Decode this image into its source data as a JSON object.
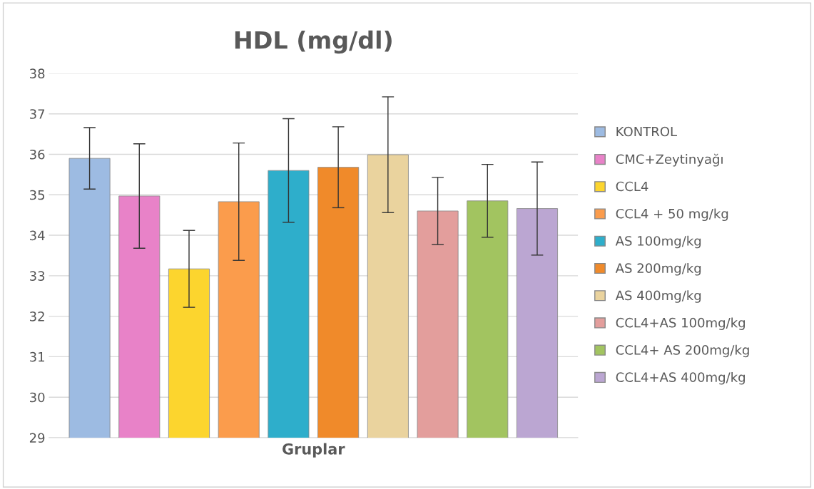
{
  "chart_data": {
    "type": "bar",
    "title": "HDL (mg/dl)",
    "xlabel": "Gruplar",
    "categories": [
      null
    ],
    "series": [
      {
        "name": "KONTROL",
        "color": "#9dbbe2",
        "values": [
          35.9
        ],
        "errors": [
          0.76
        ]
      },
      {
        "name": "CMC+Zeytinyağı",
        "color": "#e882c8",
        "values": [
          34.97
        ],
        "errors": [
          1.29
        ]
      },
      {
        "name": "CCL4",
        "color": "#fcd52e",
        "values": [
          33.17
        ],
        "errors": [
          0.95
        ]
      },
      {
        "name": "CCL4 + 50 mg/kg",
        "color": "#fb9c4c",
        "values": [
          34.83
        ],
        "errors": [
          1.45
        ]
      },
      {
        "name": "AS 100mg/kg",
        "color": "#2eaecb",
        "values": [
          35.6
        ],
        "errors": [
          1.28
        ]
      },
      {
        "name": "AS 200mg/kg",
        "color": "#f08a2a",
        "values": [
          35.68
        ],
        "errors": [
          1.0
        ]
      },
      {
        "name": "AS 400mg/kg",
        "color": "#ead39e",
        "values": [
          35.99
        ],
        "errors": [
          1.43
        ]
      },
      {
        "name": "CCL4+AS 100mg/kg",
        "color": "#e39e9c",
        "values": [
          34.6
        ],
        "errors": [
          0.83
        ]
      },
      {
        "name": "CCL4+ AS 200mg/kg",
        "color": "#a2c460",
        "values": [
          34.85
        ],
        "errors": [
          0.9
        ]
      },
      {
        "name": "CCL4+AS 400mg/kg",
        "color": "#bba6d2",
        "values": [
          34.66
        ],
        "errors": [
          1.15
        ]
      }
    ],
    "ylim": [
      29,
      38
    ],
    "yticks": [
      29,
      30,
      31,
      32,
      33,
      34,
      35,
      36,
      37,
      38
    ],
    "grid": "y",
    "legend": "right"
  }
}
